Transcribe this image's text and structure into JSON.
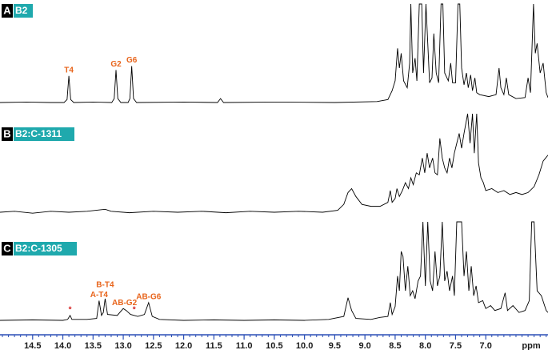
{
  "chart_data": {
    "type": "line",
    "xlabel": "ppm",
    "xlim": [
      15.04,
      5.97
    ],
    "ylim": [
      0,
      100
    ],
    "axis_color": "#2b4fb5",
    "xticks": [
      14.5,
      {
        "value": 14.0,
        "label": "14.0"
      },
      13.5,
      {
        "value": 13.0,
        "label": "13.0"
      },
      12.5,
      {
        "value": 12.0,
        "label": "12.0"
      },
      11.5,
      {
        "value": 11.0,
        "label": "11.0"
      },
      10.5,
      {
        "value": 10.0,
        "label": "10.0"
      },
      9.5,
      {
        "value": 9.0,
        "label": "9.0"
      },
      8.5,
      {
        "value": 8.0,
        "label": "8.0"
      },
      7.5,
      {
        "value": 7.0,
        "label": "7.0"
      }
    ],
    "xminorticks": [
      15.0,
      14.9,
      14.8,
      14.7,
      14.6,
      14.4,
      14.3,
      14.2,
      14.1,
      13.9,
      13.8,
      13.7,
      13.6,
      13.4,
      13.3,
      13.2,
      13.1,
      12.9,
      12.8,
      12.7,
      12.6,
      12.4,
      12.3,
      12.2,
      12.1,
      11.9,
      11.8,
      11.7,
      11.6,
      11.4,
      11.3,
      11.2,
      11.1,
      10.9,
      10.8,
      10.7,
      10.6,
      10.4,
      10.3,
      10.2,
      10.1,
      9.9,
      9.8,
      9.7,
      9.6,
      9.4,
      9.3,
      9.2,
      9.1,
      8.9,
      8.8,
      8.7,
      8.6,
      8.4,
      8.3,
      8.2,
      8.1,
      7.9,
      7.8,
      7.7,
      7.6,
      7.4,
      7.3,
      7.2,
      7.1,
      6.9,
      6.8,
      6.7,
      6.6,
      6.5,
      6.4,
      6.3,
      6.2,
      6.1,
      6.0
    ],
    "series": [
      {
        "panel": "A",
        "name": "B2",
        "color": "#000000",
        "x": [
          15.04,
          14.6,
          14.2,
          13.98,
          13.93,
          13.9,
          13.87,
          13.82,
          13.5,
          13.19,
          13.15,
          13.12,
          13.09,
          13.04,
          12.92,
          12.89,
          12.86,
          12.83,
          12.78,
          12.0,
          11.44,
          11.39,
          11.34,
          10.5,
          9.5,
          8.8,
          8.62,
          8.55,
          8.5,
          8.46,
          8.43,
          8.4,
          8.36,
          8.3,
          8.26,
          8.24,
          8.21,
          8.17,
          8.14,
          8.1,
          8.06,
          8.03,
          7.99,
          7.96,
          7.93,
          7.89,
          7.86,
          7.82,
          7.78,
          7.74,
          7.71,
          7.68,
          7.62,
          7.58,
          7.55,
          7.5,
          7.46,
          7.43,
          7.4,
          7.36,
          7.32,
          7.29,
          7.25,
          7.22,
          7.18,
          7.15,
          7.1,
          6.95,
          6.83,
          6.78,
          6.75,
          6.7,
          6.66,
          6.62,
          6.5,
          6.35,
          6.3,
          6.26,
          6.21,
          6.18,
          6.15,
          6.1,
          6.05,
          6.0,
          5.97
        ],
        "values": [
          0,
          0.5,
          0,
          0,
          3,
          27,
          3,
          0,
          0.5,
          0,
          4,
          33,
          4,
          0,
          0,
          4,
          37,
          4,
          0,
          0.5,
          0,
          4,
          0,
          0.5,
          0,
          1,
          3,
          12,
          22,
          55,
          35,
          50,
          22,
          15,
          40,
          100,
          30,
          45,
          22,
          100,
          100,
          30,
          100,
          60,
          20,
          25,
          70,
          30,
          20,
          100,
          100,
          30,
          22,
          40,
          20,
          20,
          100,
          100,
          35,
          18,
          30,
          15,
          28,
          12,
          25,
          10,
          8,
          6,
          8,
          35,
          15,
          8,
          25,
          8,
          4,
          5,
          25,
          10,
          100,
          50,
          60,
          30,
          40,
          10,
          5
        ],
        "annotations": [
          {
            "text": "T4",
            "x": 13.9,
            "color": "#e8641b"
          },
          {
            "text": "G2",
            "x": 13.12,
            "color": "#e8641b"
          },
          {
            "text": "G6",
            "x": 12.86,
            "color": "#e8641b"
          }
        ]
      },
      {
        "panel": "B",
        "name": "B2:C-1311",
        "color": "#000000",
        "x": [
          15.04,
          14.8,
          14.5,
          14.2,
          13.9,
          13.6,
          13.3,
          13.2,
          12.9,
          12.5,
          12.1,
          11.7,
          11.3,
          10.9,
          10.5,
          10.1,
          9.7,
          9.45,
          9.35,
          9.28,
          9.22,
          9.15,
          9.05,
          8.9,
          8.75,
          8.62,
          8.58,
          8.55,
          8.5,
          8.47,
          8.43,
          8.38,
          8.33,
          8.28,
          8.24,
          8.2,
          8.15,
          8.1,
          8.05,
          8.01,
          7.97,
          7.93,
          7.88,
          7.84,
          7.8,
          7.76,
          7.72,
          7.68,
          7.64,
          7.6,
          7.56,
          7.52,
          7.48,
          7.44,
          7.4,
          7.36,
          7.3,
          7.26,
          7.22,
          7.19,
          7.15,
          7.12,
          7.08,
          7.04,
          7.0,
          6.9,
          6.8,
          6.7,
          6.6,
          6.5,
          6.4,
          6.3,
          6.2,
          6.12,
          6.05,
          5.97
        ],
        "values": [
          0,
          1,
          -1,
          1,
          0,
          1,
          3,
          1,
          -0.5,
          1,
          0,
          1,
          -0.5,
          1,
          0,
          1,
          0,
          2,
          8,
          20,
          24,
          16,
          8,
          6,
          6,
          10,
          22,
          10,
          14,
          24,
          16,
          22,
          30,
          24,
          35,
          28,
          40,
          38,
          55,
          40,
          60,
          45,
          55,
          40,
          38,
          75,
          55,
          45,
          40,
          55,
          45,
          60,
          70,
          80,
          65,
          80,
          100,
          70,
          100,
          60,
          100,
          50,
          35,
          30,
          22,
          24,
          20,
          22,
          18,
          20,
          18,
          20,
          26,
          38,
          52,
          58
        ],
        "annotations": []
      },
      {
        "panel": "C",
        "name": "B2:C-1305",
        "color": "#000000",
        "x": [
          15.04,
          14.5,
          14.0,
          13.92,
          13.88,
          13.85,
          13.6,
          13.44,
          13.4,
          13.36,
          13.33,
          13.3,
          13.26,
          13.1,
          13.0,
          12.95,
          12.88,
          12.82,
          12.76,
          12.65,
          12.58,
          12.52,
          12.4,
          12.0,
          11.5,
          11.0,
          10.5,
          10.0,
          9.6,
          9.35,
          9.28,
          9.22,
          9.15,
          8.9,
          8.75,
          8.62,
          8.58,
          8.55,
          8.5,
          8.46,
          8.43,
          8.4,
          8.37,
          8.33,
          8.29,
          8.25,
          8.21,
          8.17,
          8.12,
          8.08,
          8.04,
          8.0,
          7.96,
          7.92,
          7.88,
          7.84,
          7.8,
          7.76,
          7.72,
          7.68,
          7.64,
          7.6,
          7.55,
          7.52,
          7.48,
          7.44,
          7.4,
          7.36,
          7.32,
          7.28,
          7.24,
          7.2,
          7.16,
          7.12,
          7.05,
          7.0,
          6.92,
          6.85,
          6.75,
          6.68,
          6.64,
          6.55,
          6.45,
          6.35,
          6.28,
          6.24,
          6.2,
          6.15,
          6.08,
          6.0,
          5.97
        ],
        "values": [
          0,
          0.5,
          0,
          1,
          5,
          1,
          1,
          2,
          20,
          5,
          8,
          22,
          6,
          5,
          12,
          10,
          6,
          5,
          4,
          6,
          18,
          4,
          1,
          0,
          0.5,
          0,
          0.5,
          0,
          1,
          4,
          23,
          10,
          2,
          1,
          3,
          4,
          18,
          6,
          14,
          45,
          30,
          70,
          65,
          30,
          55,
          25,
          30,
          22,
          40,
          45,
          100,
          35,
          100,
          40,
          30,
          70,
          35,
          45,
          100,
          40,
          50,
          30,
          45,
          25,
          100,
          100,
          100,
          45,
          70,
          30,
          55,
          25,
          35,
          18,
          20,
          12,
          15,
          10,
          12,
          28,
          10,
          15,
          8,
          10,
          20,
          100,
          100,
          30,
          25,
          10,
          8
        ],
        "annotations": [
          {
            "text": "*",
            "x": 13.88,
            "color": "#d42020"
          },
          {
            "text": "A-T4",
            "x": 13.4,
            "color": "#e8641b"
          },
          {
            "text": "B-T4",
            "x": 13.3,
            "color": "#e8641b"
          },
          {
            "text": "AB-G2",
            "x": 12.98,
            "color": "#e8641b"
          },
          {
            "text": "*",
            "x": 12.82,
            "color": "#d42020"
          },
          {
            "text": "AB-G6",
            "x": 12.58,
            "color": "#e8641b"
          }
        ]
      }
    ]
  }
}
